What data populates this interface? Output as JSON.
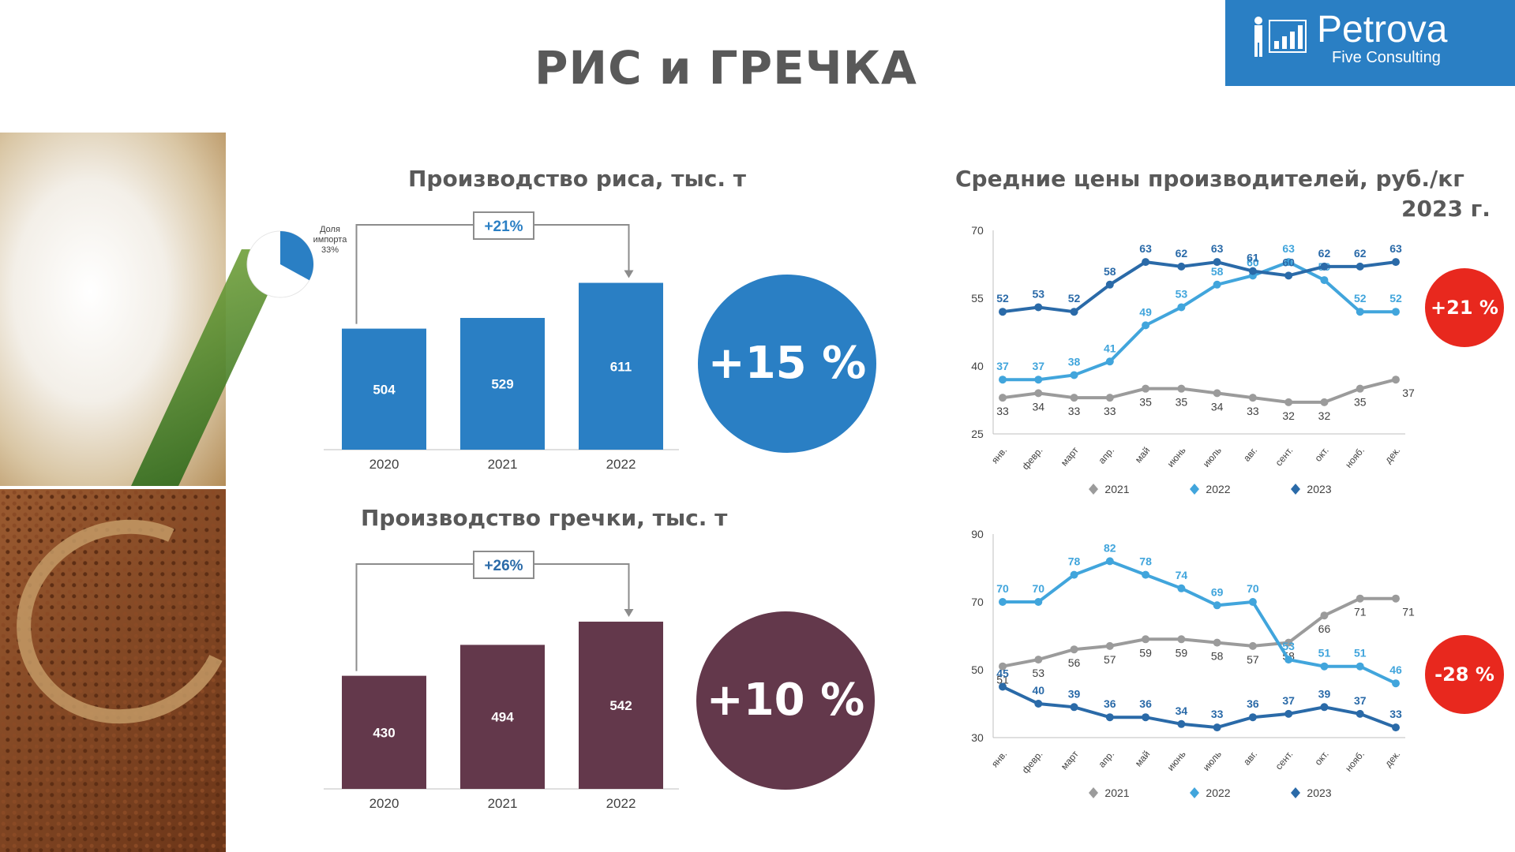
{
  "title": "РИС и ГРЕЧКА",
  "logo": {
    "name": "Petrova",
    "sub": "Five Consulting"
  },
  "colors": {
    "blue": "#2a7fc4",
    "maroon": "#63384b",
    "light_blue": "#41a5dc",
    "dark_blue": "#2a6aa8",
    "gray": "#9b9b9b",
    "red": "#e8281e"
  },
  "rice": {
    "title": "Производство риса, тыс. т",
    "growth_label": "+21%",
    "total_change": "+15 %",
    "import_label": [
      "Доля",
      "импорта",
      "33%"
    ]
  },
  "buckwheat": {
    "title": "Производство гречки, тыс. т",
    "growth_label": "+26%",
    "total_change": "+10 %"
  },
  "prices": {
    "title_line1": "Средние цены производителей, руб./кг",
    "title_line2": "2023 г.",
    "rice_change": "+21 %",
    "buckwheat_change": "-28 %"
  },
  "chart_data": [
    {
      "type": "bar",
      "id": "rice_production",
      "title": "Производство риса, тыс. т",
      "categories": [
        "2020",
        "2021",
        "2022"
      ],
      "values": [
        504,
        529,
        611
      ],
      "ylim": [
        0,
        700
      ]
    },
    {
      "type": "pie",
      "id": "rice_import_share",
      "labels": [
        "Доля импорта",
        ""
      ],
      "values": [
        33,
        67
      ]
    },
    {
      "type": "bar",
      "id": "buckwheat_production",
      "title": "Производство гречки, тыс. т",
      "categories": [
        "2020",
        "2021",
        "2022"
      ],
      "values": [
        430,
        494,
        542
      ],
      "ylim": [
        0,
        620
      ]
    },
    {
      "type": "line",
      "id": "rice_prices",
      "x": [
        "янв.",
        "февр.",
        "март",
        "апр.",
        "май",
        "июнь",
        "июль",
        "авг.",
        "сент.",
        "окт.",
        "нояб.",
        "дек."
      ],
      "ylim": [
        25,
        70
      ],
      "yticks": [
        25,
        40,
        55,
        70
      ],
      "series": [
        {
          "name": "2021",
          "values": [
            33,
            34,
            33,
            33,
            35,
            35,
            34,
            33,
            32,
            32,
            35,
            37
          ]
        },
        {
          "name": "2022",
          "values": [
            37,
            37,
            38,
            41,
            49,
            53,
            58,
            60,
            63,
            59,
            52,
            52
          ]
        },
        {
          "name": "2023",
          "values": [
            52,
            53,
            52,
            58,
            63,
            62,
            63,
            61,
            60,
            62,
            62,
            63
          ]
        }
      ]
    },
    {
      "type": "line",
      "id": "buckwheat_prices",
      "x": [
        "янв.",
        "февр.",
        "март",
        "апр.",
        "май",
        "июнь",
        "июль",
        "авг.",
        "сент.",
        "окт.",
        "нояб.",
        "дек."
      ],
      "ylim": [
        30,
        90
      ],
      "yticks": [
        30,
        50,
        70,
        90
      ],
      "series": [
        {
          "name": "2021",
          "values": [
            51,
            53,
            56,
            57,
            59,
            59,
            58,
            57,
            58,
            66,
            71,
            71
          ]
        },
        {
          "name": "2022",
          "values": [
            70,
            70,
            78,
            82,
            78,
            74,
            69,
            70,
            53,
            51,
            51,
            46
          ]
        },
        {
          "name": "2023",
          "values": [
            45,
            40,
            39,
            36,
            36,
            34,
            33,
            36,
            37,
            39,
            37,
            33
          ]
        }
      ]
    }
  ]
}
